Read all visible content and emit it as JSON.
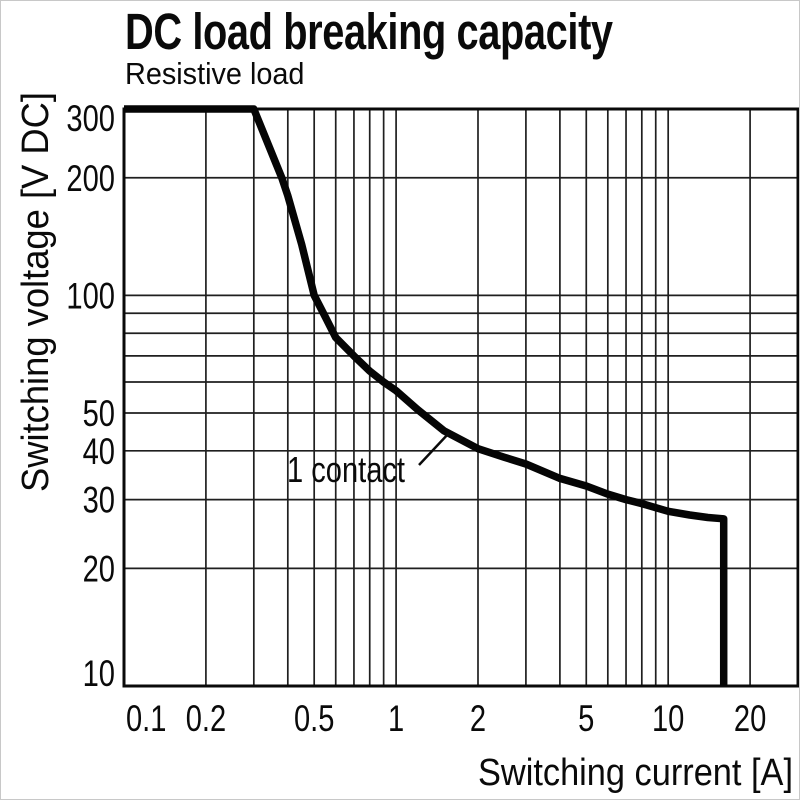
{
  "page": {
    "background": "#ffffff",
    "frame_color": "#c8c8c8"
  },
  "chart_data": {
    "type": "line",
    "title": "DC load breaking capacity",
    "subtitle": "Resistive load",
    "xlabel": "Switching current [A]",
    "ylabel": "Switching voltage [V DC]",
    "x_scale": "log",
    "y_scale": "log",
    "xlim": [
      0.1,
      30
    ],
    "ylim": [
      10,
      300
    ],
    "x_ticks": [
      0.1,
      0.2,
      0.5,
      1,
      2,
      5,
      10,
      20
    ],
    "y_ticks": [
      10,
      20,
      30,
      40,
      50,
      100,
      200,
      300
    ],
    "grid": {
      "minor_log_lines": true,
      "color": "#1f1f1f"
    },
    "frame_color": "#0a0a0a",
    "line_color": "#050505",
    "series": [
      {
        "name": "1 contact",
        "points": [
          [
            0.1,
            300
          ],
          [
            0.3,
            300
          ],
          [
            0.38,
            200
          ],
          [
            0.4,
            180
          ],
          [
            0.45,
            135
          ],
          [
            0.5,
            100
          ],
          [
            0.55,
            88
          ],
          [
            0.6,
            78
          ],
          [
            0.7,
            70
          ],
          [
            0.8,
            64
          ],
          [
            0.9,
            60
          ],
          [
            1,
            57
          ],
          [
            1.2,
            51
          ],
          [
            1.5,
            45
          ],
          [
            2,
            40.5
          ],
          [
            2.5,
            38.5
          ],
          [
            3,
            37
          ],
          [
            4,
            34
          ],
          [
            5,
            32.5
          ],
          [
            6,
            31
          ],
          [
            7,
            30
          ],
          [
            8,
            29.3
          ],
          [
            10,
            28
          ],
          [
            12,
            27.4
          ],
          [
            14,
            27
          ],
          [
            16,
            26.8
          ],
          [
            16,
            10
          ]
        ]
      }
    ],
    "annotation": {
      "text": "1 contact"
    }
  }
}
